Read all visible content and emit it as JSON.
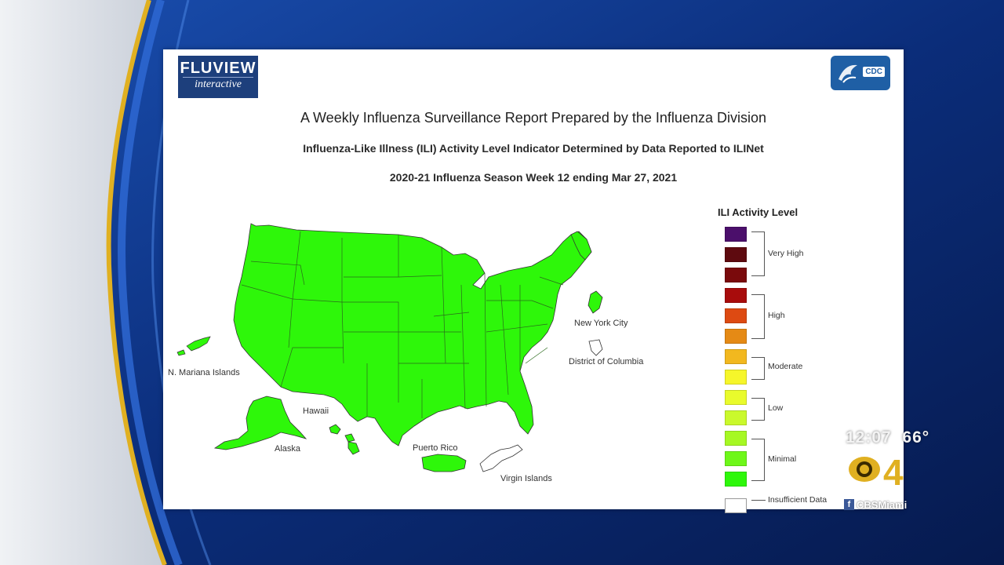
{
  "logo": {
    "line1": "FLUVIEW",
    "line2": "interactive",
    "agency": "CDC"
  },
  "title": "A Weekly Influenza Surveillance Report Prepared by the Influenza Division",
  "subtitle": "Influenza-Like Illness (ILI) Activity Level Indicator Determined by Data Reported to ILINet",
  "week": "2020-21 Influenza Season Week 12 ending Mar 27, 2021",
  "map_labels": {
    "nyc": "New York City",
    "dc": "District of Columbia",
    "nmi": "N. Mariana Islands",
    "hawaii": "Hawaii",
    "alaska": "Alaska",
    "pr": "Puerto Rico",
    "vi": "Virgin Islands"
  },
  "map_fill": {
    "states": "#2ef70a",
    "insufficient": "#ffffff"
  },
  "legend": {
    "title": "ILI Activity Level",
    "swatches": [
      {
        "level": 13,
        "color": "#4b0f6b"
      },
      {
        "level": 12,
        "color": "#5e0a0f"
      },
      {
        "level": 11,
        "color": "#7a0a0c"
      },
      {
        "level": 10,
        "color": "#a80c0c"
      },
      {
        "level": 9,
        "color": "#dd4a12"
      },
      {
        "level": 8,
        "color": "#e58a15"
      },
      {
        "level": 7,
        "color": "#f2b81f"
      },
      {
        "level": 6,
        "color": "#f6f62a"
      },
      {
        "level": 5,
        "color": "#e9fb2c"
      },
      {
        "level": 4,
        "color": "#caf92c"
      },
      {
        "level": 3,
        "color": "#a6f823"
      },
      {
        "level": 2,
        "color": "#6ef719"
      },
      {
        "level": 1,
        "color": "#2ef70a"
      },
      {
        "level": 0,
        "color": "#ffffff"
      }
    ],
    "groups": {
      "very_high": "Very High",
      "high": "High",
      "moderate": "Moderate",
      "low": "Low",
      "minimal": "Minimal",
      "insufficient": "Insufficient Data"
    }
  },
  "overlay": {
    "time": "12:07",
    "temp": "66°",
    "channel": "4",
    "handle": "CBSMiami"
  }
}
